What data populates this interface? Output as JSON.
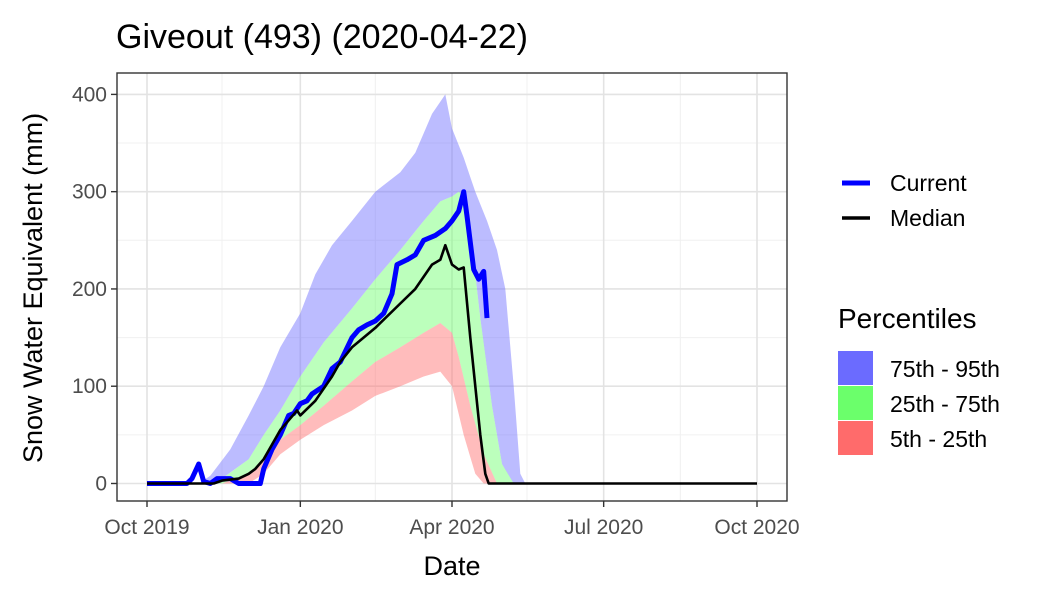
{
  "chart_data": {
    "type": "area",
    "title": "Giveout (493) (2020-04-22)",
    "xlabel": "Date",
    "ylabel": "Snow Water Equivalent (mm)",
    "x_ticks": [
      "Oct 2019",
      "Jan 2020",
      "Apr 2020",
      "Jul 2020",
      "Oct 2020"
    ],
    "y_ticks": [
      0,
      100,
      200,
      300,
      400
    ],
    "xlim": [
      "2019-10-01",
      "2020-10-01"
    ],
    "ylim": [
      -18,
      422
    ],
    "grid": true,
    "legend_position": "right",
    "line_legend": [
      {
        "name": "Current",
        "color": "#0000ff"
      },
      {
        "name": "Median",
        "color": "#000000"
      }
    ],
    "percentile_legend_title": "Percentiles",
    "percentile_legend": [
      {
        "name": "75th - 95th",
        "color": "#6b6bff"
      },
      {
        "name": "25th - 75th",
        "color": "#6bff6b"
      },
      {
        "name": "5th - 25th",
        "color": "#ff6b6b"
      }
    ],
    "bands": {
      "p5": [
        [
          "2019-10-01",
          0
        ],
        [
          "2019-11-15",
          0
        ],
        [
          "2019-12-01",
          0
        ],
        [
          "2019-12-10",
          10
        ],
        [
          "2019-12-20",
          30
        ],
        [
          "2020-01-01",
          45
        ],
        [
          "2020-01-15",
          60
        ],
        [
          "2020-02-01",
          75
        ],
        [
          "2020-02-15",
          90
        ],
        [
          "2020-03-01",
          100
        ],
        [
          "2020-03-15",
          110
        ],
        [
          "2020-03-25",
          115
        ],
        [
          "2020-04-01",
          100
        ],
        [
          "2020-04-08",
          50
        ],
        [
          "2020-04-15",
          10
        ],
        [
          "2020-04-20",
          0
        ],
        [
          "2020-10-01",
          0
        ]
      ],
      "p25": [
        [
          "2019-10-01",
          0
        ],
        [
          "2019-11-15",
          0
        ],
        [
          "2019-12-01",
          10
        ],
        [
          "2019-12-10",
          25
        ],
        [
          "2019-12-20",
          45
        ],
        [
          "2020-01-01",
          60
        ],
        [
          "2020-01-15",
          80
        ],
        [
          "2020-02-01",
          105
        ],
        [
          "2020-02-15",
          125
        ],
        [
          "2020-03-01",
          140
        ],
        [
          "2020-03-15",
          155
        ],
        [
          "2020-03-25",
          165
        ],
        [
          "2020-04-01",
          155
        ],
        [
          "2020-04-05",
          130
        ],
        [
          "2020-04-12",
          80
        ],
        [
          "2020-04-20",
          30
        ],
        [
          "2020-04-28",
          0
        ],
        [
          "2020-10-01",
          0
        ]
      ],
      "p75": [
        [
          "2019-10-01",
          0
        ],
        [
          "2019-11-01",
          0
        ],
        [
          "2019-11-15",
          5
        ],
        [
          "2019-12-01",
          25
        ],
        [
          "2019-12-10",
          50
        ],
        [
          "2019-12-20",
          75
        ],
        [
          "2020-01-01",
          110
        ],
        [
          "2020-01-15",
          145
        ],
        [
          "2020-02-01",
          180
        ],
        [
          "2020-02-15",
          210
        ],
        [
          "2020-03-01",
          240
        ],
        [
          "2020-03-15",
          270
        ],
        [
          "2020-03-25",
          290
        ],
        [
          "2020-04-01",
          295
        ],
        [
          "2020-04-05",
          300
        ],
        [
          "2020-04-08",
          295
        ],
        [
          "2020-04-12",
          260
        ],
        [
          "2020-04-18",
          170
        ],
        [
          "2020-04-25",
          80
        ],
        [
          "2020-05-01",
          20
        ],
        [
          "2020-05-08",
          0
        ],
        [
          "2020-10-01",
          0
        ]
      ],
      "p95": [
        [
          "2019-10-01",
          0
        ],
        [
          "2019-11-01",
          0
        ],
        [
          "2019-11-08",
          8
        ],
        [
          "2019-11-20",
          35
        ],
        [
          "2019-12-01",
          70
        ],
        [
          "2019-12-10",
          100
        ],
        [
          "2019-12-20",
          140
        ],
        [
          "2020-01-01",
          175
        ],
        [
          "2020-01-10",
          215
        ],
        [
          "2020-01-20",
          245
        ],
        [
          "2020-02-01",
          270
        ],
        [
          "2020-02-15",
          300
        ],
        [
          "2020-03-01",
          320
        ],
        [
          "2020-03-10",
          340
        ],
        [
          "2020-03-20",
          380
        ],
        [
          "2020-03-28",
          400
        ],
        [
          "2020-04-01",
          365
        ],
        [
          "2020-04-08",
          335
        ],
        [
          "2020-04-15",
          300
        ],
        [
          "2020-04-22",
          270
        ],
        [
          "2020-04-28",
          240
        ],
        [
          "2020-05-03",
          200
        ],
        [
          "2020-05-08",
          100
        ],
        [
          "2020-05-12",
          10
        ],
        [
          "2020-05-15",
          0
        ],
        [
          "2020-10-01",
          0
        ]
      ]
    },
    "series": [
      {
        "name": "Current",
        "color": "#0000ff",
        "points": [
          [
            "2019-10-01",
            0
          ],
          [
            "2019-10-25",
            0
          ],
          [
            "2019-10-28",
            5
          ],
          [
            "2019-11-01",
            20
          ],
          [
            "2019-11-04",
            2
          ],
          [
            "2019-11-08",
            0
          ],
          [
            "2019-11-12",
            5
          ],
          [
            "2019-11-20",
            5
          ],
          [
            "2019-11-25",
            0
          ],
          [
            "2019-12-08",
            0
          ],
          [
            "2019-12-10",
            15
          ],
          [
            "2019-12-15",
            35
          ],
          [
            "2019-12-20",
            50
          ],
          [
            "2019-12-25",
            70
          ],
          [
            "2019-12-28",
            72
          ],
          [
            "2020-01-01",
            82
          ],
          [
            "2020-01-05",
            85
          ],
          [
            "2020-01-08",
            92
          ],
          [
            "2020-01-15",
            100
          ],
          [
            "2020-01-20",
            118
          ],
          [
            "2020-01-25",
            125
          ],
          [
            "2020-02-01",
            150
          ],
          [
            "2020-02-05",
            158
          ],
          [
            "2020-02-10",
            163
          ],
          [
            "2020-02-15",
            167
          ],
          [
            "2020-02-20",
            175
          ],
          [
            "2020-02-25",
            195
          ],
          [
            "2020-02-28",
            225
          ],
          [
            "2020-03-05",
            230
          ],
          [
            "2020-03-10",
            235
          ],
          [
            "2020-03-15",
            250
          ],
          [
            "2020-03-22",
            255
          ],
          [
            "2020-03-28",
            262
          ],
          [
            "2020-04-01",
            270
          ],
          [
            "2020-04-05",
            280
          ],
          [
            "2020-04-08",
            300
          ],
          [
            "2020-04-10",
            275
          ],
          [
            "2020-04-14",
            220
          ],
          [
            "2020-04-17",
            210
          ],
          [
            "2020-04-20",
            218
          ],
          [
            "2020-04-22",
            170
          ]
        ]
      },
      {
        "name": "Median",
        "color": "#000000",
        "points": [
          [
            "2019-10-01",
            0
          ],
          [
            "2019-11-10",
            0
          ],
          [
            "2019-11-15",
            3
          ],
          [
            "2019-11-25",
            5
          ],
          [
            "2019-12-01",
            10
          ],
          [
            "2019-12-05",
            15
          ],
          [
            "2019-12-10",
            25
          ],
          [
            "2019-12-15",
            40
          ],
          [
            "2019-12-20",
            55
          ],
          [
            "2019-12-25",
            65
          ],
          [
            "2019-12-30",
            75
          ],
          [
            "2020-01-01",
            70
          ],
          [
            "2020-01-10",
            85
          ],
          [
            "2020-01-20",
            110
          ],
          [
            "2020-01-25",
            125
          ],
          [
            "2020-02-01",
            140
          ],
          [
            "2020-02-15",
            160
          ],
          [
            "2020-03-01",
            185
          ],
          [
            "2020-03-10",
            200
          ],
          [
            "2020-03-20",
            225
          ],
          [
            "2020-03-25",
            230
          ],
          [
            "2020-03-28",
            245
          ],
          [
            "2020-04-01",
            225
          ],
          [
            "2020-04-05",
            220
          ],
          [
            "2020-04-08",
            222
          ],
          [
            "2020-04-12",
            150
          ],
          [
            "2020-04-15",
            100
          ],
          [
            "2020-04-18",
            50
          ],
          [
            "2020-04-21",
            10
          ],
          [
            "2020-04-23",
            0
          ],
          [
            "2020-10-01",
            0
          ]
        ]
      }
    ]
  }
}
